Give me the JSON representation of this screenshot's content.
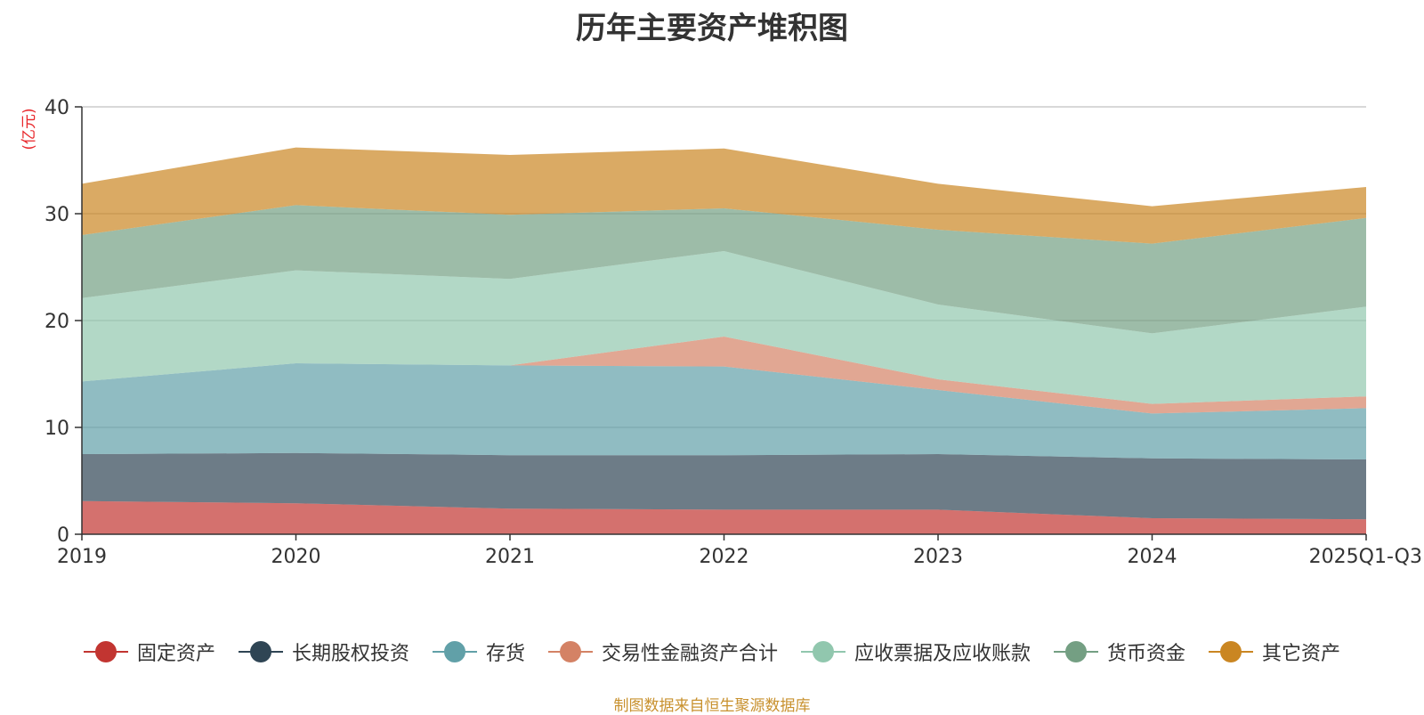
{
  "chart_data": {
    "type": "area",
    "stacked": true,
    "title": "历年主要资产堆积图",
    "ylabel": "(亿元)",
    "xlabel": "",
    "ylim": [
      0,
      40
    ],
    "yticks": [
      0,
      10,
      20,
      30,
      40
    ],
    "categories": [
      "2019",
      "2020",
      "2021",
      "2022",
      "2023",
      "2024",
      "2025Q1-Q3"
    ],
    "series": [
      {
        "name": "固定资产",
        "color": "#c23531",
        "values": [
          3.1,
          2.9,
          2.4,
          2.3,
          2.3,
          1.5,
          1.4
        ]
      },
      {
        "name": "长期股权投资",
        "color": "#2f4554",
        "values": [
          4.4,
          4.7,
          5.0,
          5.1,
          5.2,
          5.6,
          5.6
        ]
      },
      {
        "name": "存货",
        "color": "#61a0a8",
        "values": [
          6.8,
          8.4,
          8.4,
          8.3,
          6.0,
          4.2,
          4.8
        ]
      },
      {
        "name": "交易性金融资产合计",
        "color": "#d48265",
        "values": [
          0.0,
          0.0,
          0.0,
          2.8,
          1.0,
          0.9,
          1.1
        ]
      },
      {
        "name": "应收票据及应收账款",
        "color": "#91c7ae",
        "values": [
          7.8,
          8.7,
          8.1,
          8.0,
          7.0,
          6.6,
          8.4
        ]
      },
      {
        "name": "货币资金",
        "color": "#749f83",
        "values": [
          5.9,
          6.1,
          6.0,
          4.0,
          7.0,
          8.4,
          8.3
        ]
      },
      {
        "name": "其它资产",
        "color": "#ca8622",
        "values": [
          4.8,
          5.4,
          5.6,
          5.6,
          4.3,
          3.5,
          2.9
        ]
      }
    ]
  },
  "source_note": "制图数据来自恒生聚源数据库"
}
